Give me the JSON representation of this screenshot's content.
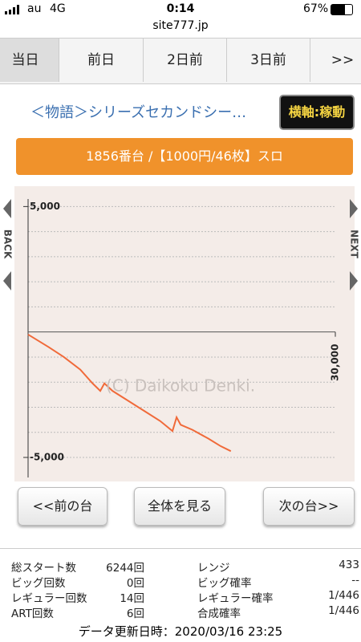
{
  "status_bar": {
    "carrier": "au",
    "network": "4G",
    "time": "0:14",
    "battery": "67%"
  },
  "url": "site777.jp",
  "tabs": [
    "当日",
    "前日",
    "2日前",
    "3日前",
    ">>"
  ],
  "machine_title": "＜物語＞シリーズセカンドシー…",
  "axis_toggle": "横軸:稼動",
  "machine_info": "1856番台 /【1000円/46枚】スロ",
  "chart_data": {
    "type": "line",
    "watermark": "(C) Daikoku Denki.",
    "nav_left": "BACK",
    "nav_right": "NEXT",
    "x": [
      0,
      2000,
      3500,
      5100,
      6300,
      7050,
      7450,
      8250,
      9800,
      11350,
      12900,
      14100,
      14500,
      14900,
      16050,
      17600,
      18800,
      19800
    ],
    "values": [
      -100,
      -600,
      -1000,
      -1500,
      -2050,
      -2350,
      -2050,
      -2350,
      -2750,
      -3150,
      -3550,
      -3950,
      -3400,
      -3700,
      -3900,
      -4250,
      -4550,
      -4750
    ],
    "color": "#f06a3a",
    "xlim": [
      0,
      30000
    ],
    "xticks": [
      {
        "value": 30000,
        "label": "30,000"
      }
    ],
    "ylim": [
      -5800,
      5300
    ],
    "yticks": [
      {
        "value": 5000,
        "label": "5,000"
      },
      {
        "value": -5000,
        "label": "-5,000"
      }
    ],
    "grid_lines": [
      4000,
      3000,
      2000,
      1000,
      -1000,
      -2000,
      -3000,
      -4000
    ],
    "grid": true
  },
  "buttons": [
    "<<前の台",
    "全体を見る",
    "次の台>>"
  ],
  "stats": {
    "rows": [
      [
        "総スタート数",
        "6244回",
        "レンジ",
        "433"
      ],
      [
        "ビッグ回数",
        "0回",
        "ビッグ確率",
        "--"
      ],
      [
        "レギュラー回数",
        "14回",
        "レギュラー確率",
        "1/446"
      ],
      [
        "ART回数",
        "6回",
        "合成確率",
        "1/446"
      ]
    ]
  },
  "updated": "データ更新日時：2020/03/16 23:25"
}
